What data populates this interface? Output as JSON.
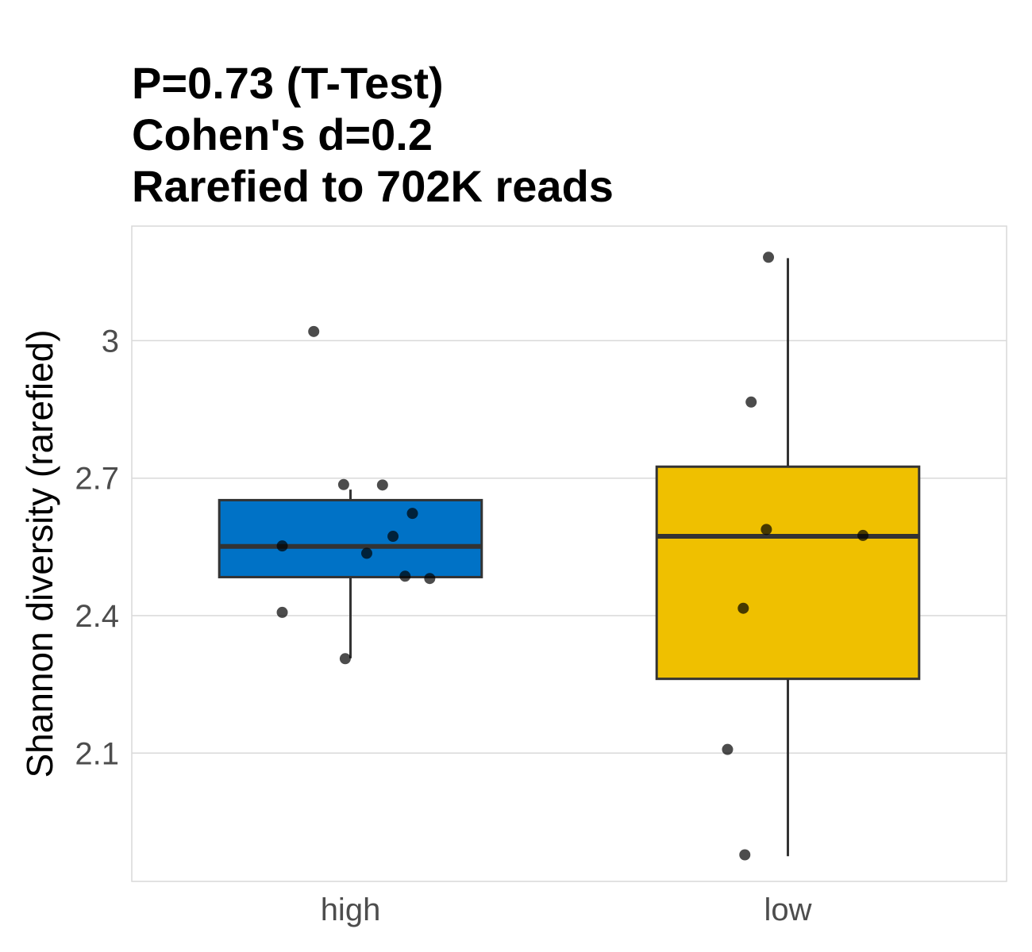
{
  "chart_data": {
    "type": "box",
    "title_lines": [
      "P=0.73 (T-Test)",
      "Cohen's d=0.2",
      "Rarefied to 702K reads"
    ],
    "xlabel": "",
    "ylabel": "Shannon diversity (rarefied)",
    "ylim": [
      1.82,
      3.25
    ],
    "yticks": [
      2.1,
      2.4,
      2.7,
      3.0
    ],
    "ytick_labels": [
      "2.1",
      "2.4",
      "2.7",
      "3"
    ],
    "grid": true,
    "categories": [
      "high",
      "low"
    ],
    "boxes": [
      {
        "category": "high",
        "color": "#0072C6",
        "q1": 2.484,
        "median": 2.551,
        "q3": 2.652,
        "whisker_low": 2.307,
        "whisker_high": 2.675
      },
      {
        "category": "low",
        "color": "#EFC000",
        "q1": 2.262,
        "median": 2.573,
        "q3": 2.725,
        "whisker_low": 1.875,
        "whisker_high": 3.18
      }
    ],
    "points": [
      {
        "category": "high",
        "jitter": -0.14,
        "y": 3.02
      },
      {
        "category": "high",
        "jitter": -0.026,
        "y": 2.686
      },
      {
        "category": "high",
        "jitter": 0.122,
        "y": 2.685
      },
      {
        "category": "high",
        "jitter": 0.236,
        "y": 2.623
      },
      {
        "category": "high",
        "jitter": 0.162,
        "y": 2.573
      },
      {
        "category": "high",
        "jitter": -0.26,
        "y": 2.552
      },
      {
        "category": "high",
        "jitter": 0.062,
        "y": 2.536
      },
      {
        "category": "high",
        "jitter": 0.208,
        "y": 2.486
      },
      {
        "category": "high",
        "jitter": 0.302,
        "y": 2.481
      },
      {
        "category": "high",
        "jitter": -0.26,
        "y": 2.407
      },
      {
        "category": "high",
        "jitter": -0.02,
        "y": 2.306
      },
      {
        "category": "low",
        "jitter": -0.074,
        "y": 3.182
      },
      {
        "category": "low",
        "jitter": -0.14,
        "y": 2.866
      },
      {
        "category": "low",
        "jitter": -0.082,
        "y": 2.588
      },
      {
        "category": "low",
        "jitter": 0.286,
        "y": 2.575
      },
      {
        "category": "low",
        "jitter": -0.17,
        "y": 2.416
      },
      {
        "category": "low",
        "jitter": -0.23,
        "y": 2.108
      },
      {
        "category": "low",
        "jitter": -0.164,
        "y": 1.878
      }
    ],
    "colors": {
      "high": "#0072C6",
      "low": "#EFC000",
      "points": "#000000",
      "box_edge": "#333333",
      "grid": "#d9d9d9"
    }
  }
}
